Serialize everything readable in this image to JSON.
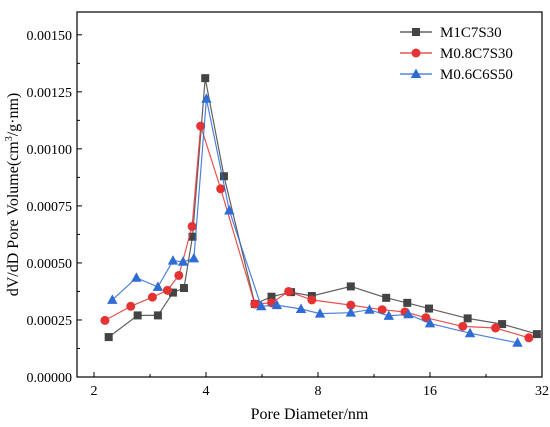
{
  "chart_data": {
    "type": "line",
    "title": "",
    "xlabel": "Pore Diameter/nm",
    "ylabel_parts": [
      "dV/dD Pore Volume(cm",
      "3",
      "/g·nm)"
    ],
    "x_scale": "log2",
    "xlim": [
      1.8,
      32
    ],
    "ylim": [
      0,
      0.0016
    ],
    "x_ticks": [
      2,
      4,
      8,
      16,
      32
    ],
    "x_tick_labels": [
      "2",
      "4",
      "8",
      "16",
      "32"
    ],
    "y_ticks": [
      0,
      0.00025,
      0.0005,
      0.00075,
      0.001,
      0.00125,
      0.0015
    ],
    "y_tick_labels": [
      "0.00000",
      "0.00025",
      "0.00050",
      "0.00075",
      "0.00100",
      "0.00125",
      "0.00150"
    ],
    "legend_position": "top-right",
    "series": [
      {
        "name": "M1C7S30",
        "color": "#444444",
        "marker": "square",
        "x": [
          2.19,
          2.62,
          2.97,
          3.26,
          3.49,
          3.68,
          3.98,
          4.47,
          5.41,
          6.0,
          6.77,
          7.7,
          9.8,
          12.2,
          13.9,
          15.9,
          20.2,
          25.0,
          31.0
        ],
        "y": [
          0.000175,
          0.00027,
          0.00027,
          0.00037,
          0.00039,
          0.000615,
          0.00131,
          0.00088,
          0.00032,
          0.000352,
          0.000372,
          0.000355,
          0.000397,
          0.000347,
          0.000325,
          0.0003,
          0.000257,
          0.000232,
          0.000188
        ]
      },
      {
        "name": "M0.8C7S30",
        "color": "#e53333",
        "marker": "circle",
        "x": [
          2.14,
          2.51,
          2.87,
          3.15,
          3.38,
          3.67,
          3.87,
          4.38,
          5.41,
          6.0,
          6.67,
          7.7,
          9.8,
          11.9,
          13.7,
          15.6,
          19.6,
          24.0,
          29.5
        ],
        "y": [
          0.000248,
          0.00031,
          0.00035,
          0.00038,
          0.000445,
          0.00066,
          0.0011,
          0.000825,
          0.00032,
          0.000325,
          0.000375,
          0.000338,
          0.000315,
          0.000295,
          0.000285,
          0.00026,
          0.000222,
          0.000215,
          0.000172
        ]
      },
      {
        "name": "M0.6C6S50",
        "color": "#2f6cd6",
        "marker": "triangle",
        "x": [
          2.24,
          2.6,
          2.97,
          3.26,
          3.47,
          3.71,
          4.01,
          4.62,
          5.63,
          6.2,
          7.2,
          8.1,
          9.8,
          11.0,
          12.4,
          14.0,
          16.0,
          20.5,
          27.5
        ],
        "y": [
          0.000338,
          0.000435,
          0.000395,
          0.00051,
          0.000505,
          0.00052,
          0.00122,
          0.00073,
          0.00031,
          0.000315,
          0.000298,
          0.000278,
          0.000282,
          0.000295,
          0.000268,
          0.000275,
          0.000235,
          0.000192,
          0.00015
        ]
      }
    ]
  }
}
